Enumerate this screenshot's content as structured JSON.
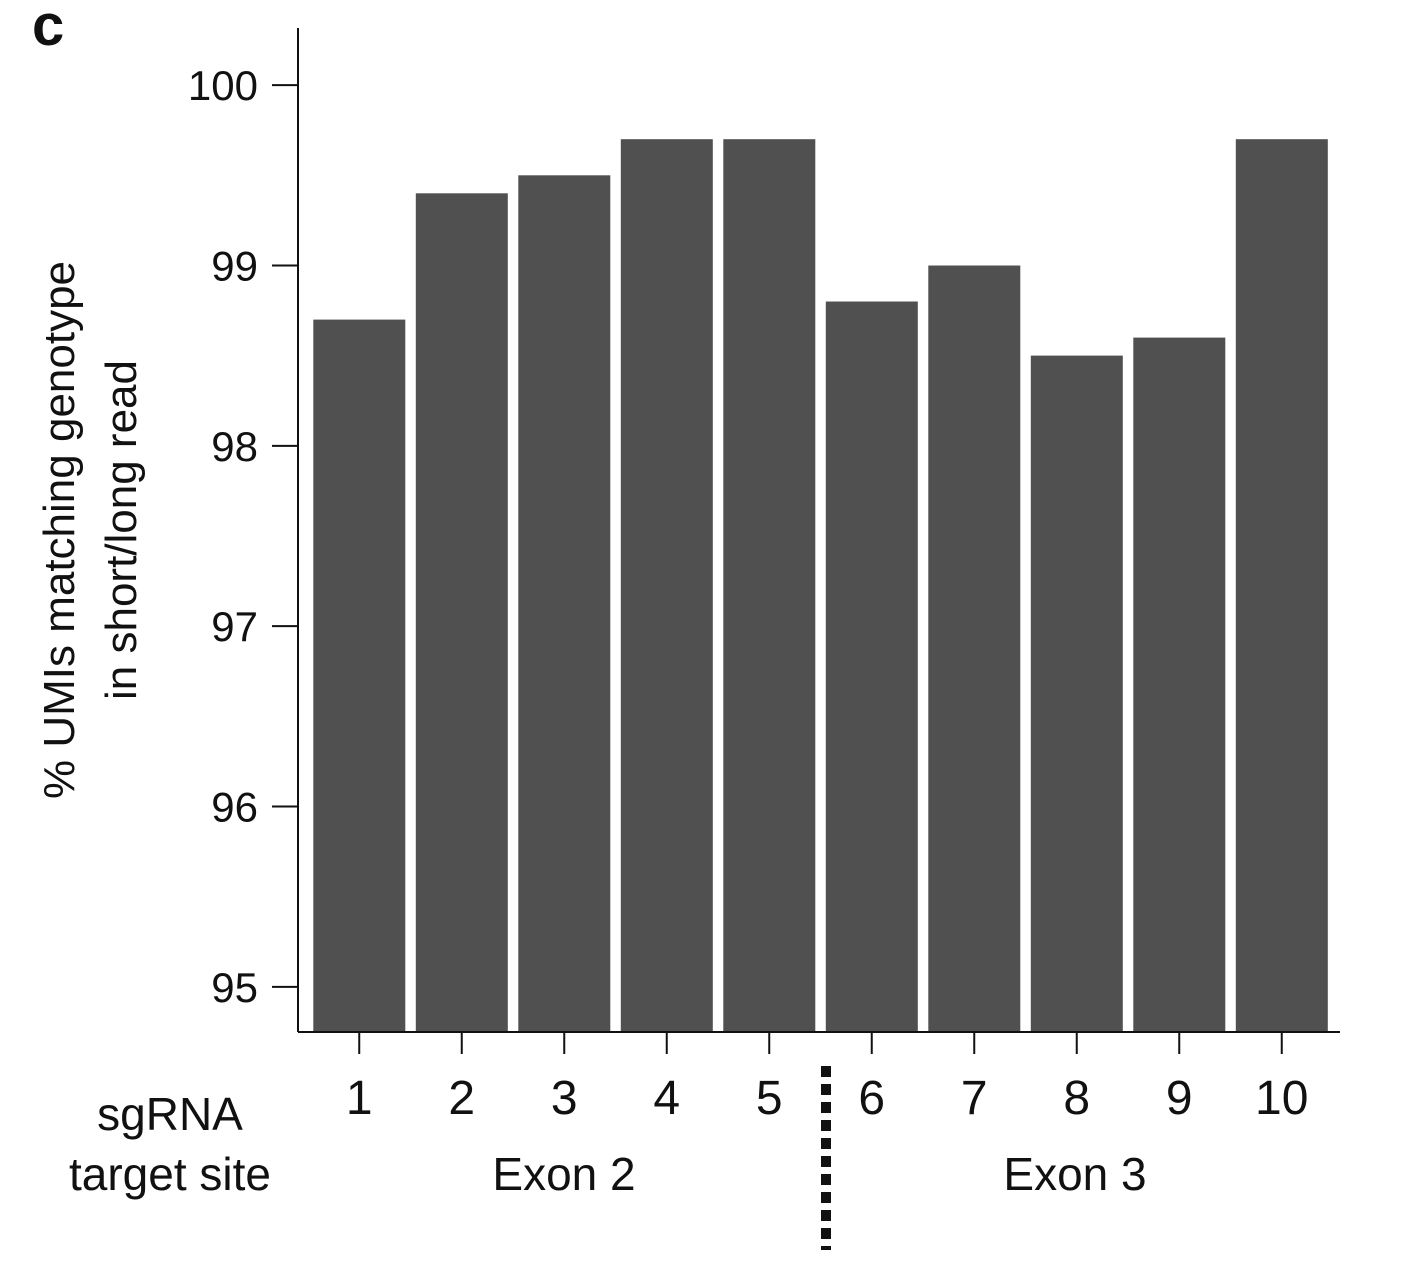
{
  "panel_label": "c",
  "chart_data": {
    "type": "bar",
    "categories": [
      "1",
      "2",
      "3",
      "4",
      "5",
      "6",
      "7",
      "8",
      "9",
      "10"
    ],
    "values": [
      98.7,
      99.4,
      99.5,
      99.7,
      99.7,
      98.8,
      99.0,
      98.5,
      98.6,
      99.7
    ],
    "ylabel_lines": [
      "% UMIs matching genotype",
      "in short/long read"
    ],
    "xlabel_lines": [
      "sgRNA",
      "target site"
    ],
    "ylim": [
      94.75,
      100.25
    ],
    "yticks": [
      95,
      96,
      97,
      98,
      99,
      100
    ],
    "grid": false,
    "bar_color": "#505050",
    "groups": [
      {
        "label": "Exon 2",
        "categories": [
          "1",
          "2",
          "3",
          "4",
          "5"
        ]
      },
      {
        "label": "Exon 3",
        "categories": [
          "6",
          "7",
          "8",
          "9",
          "10"
        ]
      }
    ],
    "divider": "dotted line between categories 5 and 6"
  }
}
